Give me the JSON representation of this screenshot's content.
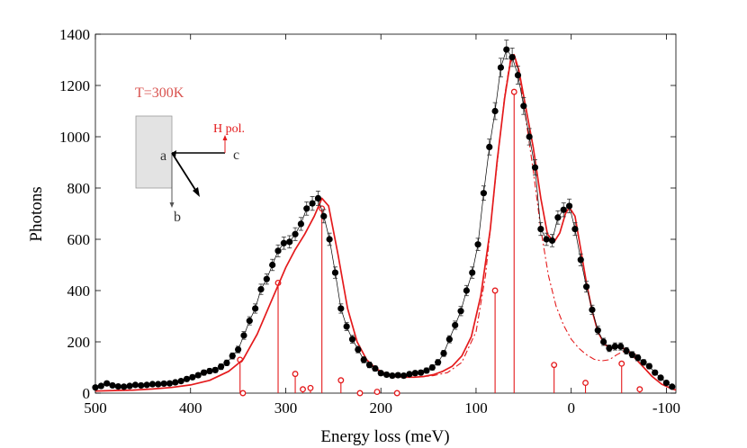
{
  "chart_data": {
    "type": "scatter",
    "title": "",
    "xlabel": "Energy loss (meV)",
    "ylabel": "Photons",
    "xlim": [
      500,
      -110
    ],
    "ylim": [
      0,
      1400
    ],
    "x_ticks": [
      500,
      400,
      300,
      200,
      100,
      0,
      -100
    ],
    "x_tick_labels": [
      "500",
      "400",
      "300",
      "200",
      "100",
      "0",
      "-100"
    ],
    "y_ticks": [
      0,
      200,
      400,
      600,
      800,
      1000,
      1200,
      1400
    ],
    "y_tick_labels": [
      "0",
      "200",
      "400",
      "600",
      "800",
      "1000",
      "1200",
      "1400"
    ],
    "grid": false,
    "series": [
      {
        "name": "Data (black markers with error bars)",
        "color": "#000000",
        "x": [
          500,
          494,
          488,
          482,
          476,
          470,
          464,
          458,
          452,
          446,
          440,
          434,
          428,
          422,
          416,
          410,
          404,
          398,
          392,
          386,
          380,
          374,
          368,
          362,
          356,
          350,
          344,
          338,
          332,
          326,
          320,
          314,
          308,
          302,
          296,
          290,
          284,
          278,
          272,
          266,
          260,
          254,
          248,
          242,
          236,
          230,
          224,
          218,
          212,
          206,
          200,
          194,
          188,
          182,
          176,
          170,
          164,
          158,
          152,
          146,
          140,
          134,
          128,
          122,
          116,
          110,
          104,
          98,
          92,
          86,
          80,
          74,
          68,
          62,
          56,
          50,
          44,
          38,
          32,
          26,
          20,
          14,
          8,
          2,
          -4,
          -10,
          -16,
          -22,
          -28,
          -34,
          -40,
          -46,
          -52,
          -58,
          -64,
          -70,
          -76,
          -82,
          -88,
          -94,
          -100,
          -106
        ],
        "y": [
          22,
          28,
          38,
          30,
          26,
          25,
          28,
          32,
          30,
          32,
          35,
          35,
          37,
          38,
          42,
          47,
          55,
          62,
          70,
          80,
          86,
          90,
          103,
          118,
          145,
          170,
          225,
          282,
          330,
          405,
          445,
          500,
          555,
          585,
          590,
          620,
          660,
          720,
          740,
          760,
          690,
          600,
          470,
          330,
          260,
          210,
          170,
          130,
          110,
          96,
          78,
          72,
          68,
          70,
          68,
          74,
          78,
          80,
          88,
          100,
          120,
          155,
          210,
          265,
          320,
          400,
          470,
          580,
          780,
          960,
          1100,
          1270,
          1340,
          1310,
          1240,
          1120,
          1000,
          880,
          640,
          600,
          595,
          685,
          715,
          730,
          640,
          520,
          415,
          325,
          245,
          200,
          175,
          182,
          182,
          165,
          150,
          138,
          120,
          105,
          80,
          60,
          40,
          25
        ],
        "err": [
          8,
          8,
          8,
          8,
          8,
          8,
          8,
          8,
          8,
          8,
          8,
          8,
          8,
          8,
          8,
          8,
          9,
          9,
          9,
          10,
          10,
          10,
          11,
          11,
          12,
          13,
          15,
          16,
          18,
          20,
          20,
          22,
          23,
          24,
          24,
          25,
          25,
          26,
          27,
          28,
          26,
          24,
          22,
          18,
          16,
          15,
          13,
          12,
          11,
          10,
          9,
          9,
          9,
          9,
          9,
          9,
          9,
          9,
          10,
          10,
          11,
          12,
          14,
          16,
          18,
          20,
          22,
          24,
          28,
          31,
          33,
          36,
          37,
          36,
          35,
          33,
          32,
          30,
          25,
          24,
          24,
          26,
          27,
          27,
          25,
          23,
          21,
          18,
          16,
          14,
          13,
          14,
          14,
          13,
          12,
          12,
          11,
          10,
          9,
          8,
          7,
          5
        ]
      },
      {
        "name": "Fit (red line)",
        "color": "#e41a1c",
        "x": [
          500,
          480,
          460,
          440,
          420,
          400,
          380,
          360,
          345,
          330,
          315,
          300,
          290,
          280,
          270,
          262,
          255,
          245,
          235,
          225,
          215,
          205,
          195,
          185,
          175,
          165,
          155,
          145,
          135,
          125,
          115,
          105,
          95,
          85,
          78,
          70,
          64,
          60,
          55,
          48,
          40,
          32,
          25,
          18,
          12,
          6,
          2,
          -4,
          -10,
          -16,
          -22,
          -28,
          -35,
          -42,
          -50,
          -58,
          -66,
          -75,
          -85,
          -95,
          -105,
          -110
        ],
        "y": [
          8,
          10,
          12,
          16,
          22,
          32,
          50,
          85,
          130,
          230,
          360,
          490,
          560,
          620,
          690,
          760,
          730,
          540,
          330,
          200,
          130,
          95,
          75,
          65,
          62,
          62,
          65,
          72,
          85,
          105,
          145,
          220,
          380,
          640,
          900,
          1150,
          1290,
          1320,
          1260,
          1120,
          960,
          760,
          620,
          590,
          625,
          700,
          725,
          690,
          560,
          430,
          320,
          240,
          190,
          175,
          180,
          170,
          140,
          105,
          65,
          35,
          18,
          12
        ]
      },
      {
        "name": "Fit without one component (red dash-dot)",
        "color": "#e41a1c",
        "x": [
          175,
          160,
          145,
          130,
          115,
          100,
          90,
          80,
          70,
          64,
          60,
          55,
          48,
          40,
          32,
          24,
          16,
          8,
          0,
          -8,
          -16,
          -24,
          -32,
          -40,
          -48,
          -56,
          -64,
          -72
        ],
        "y": [
          62,
          63,
          68,
          80,
          120,
          240,
          460,
          820,
          1160,
          1300,
          1310,
          1250,
          1080,
          870,
          640,
          460,
          340,
          265,
          210,
          175,
          150,
          132,
          126,
          130,
          150,
          165,
          160,
          140
        ]
      }
    ],
    "stems": {
      "name": "Component energies (red stems with open circles)",
      "color": "#e41a1c",
      "x": [
        348,
        345,
        308,
        290,
        282,
        274,
        262,
        242,
        222,
        204,
        183,
        80,
        60,
        18,
        -15,
        -53,
        -72
      ],
      "y": [
        130,
        0,
        430,
        75,
        15,
        20,
        720,
        50,
        0,
        5,
        0,
        400,
        1175,
        110,
        40,
        115,
        15
      ]
    },
    "annotations": {
      "temperature": "T=300K",
      "polarization": "H pol.",
      "axis_a": "a",
      "axis_b": "b",
      "axis_c": "c"
    }
  }
}
